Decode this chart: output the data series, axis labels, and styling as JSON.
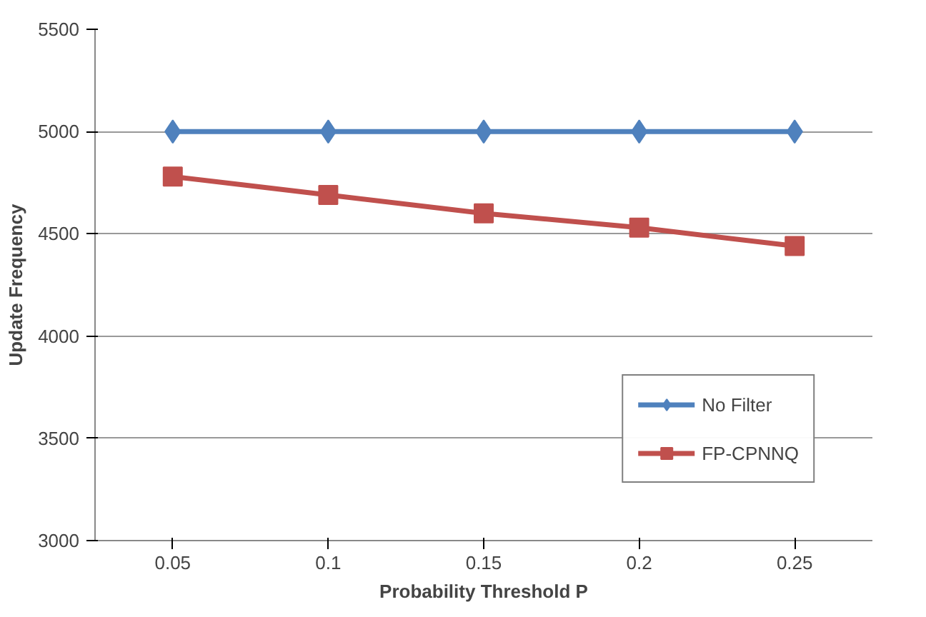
{
  "chart_data": {
    "type": "line",
    "xlabel": "Probability Threshold P",
    "ylabel": "Update Frequency",
    "categories": [
      "0.05",
      "0.1",
      "0.15",
      "0.2",
      "0.25"
    ],
    "series": [
      {
        "name": "No Filter",
        "color": "#4f81bd",
        "values": [
          5000,
          5000,
          5000,
          5000,
          5000
        ],
        "marker": "diamond"
      },
      {
        "name": "FP-CPNNQ",
        "color": "#c0504d",
        "values": [
          4780,
          4690,
          4600,
          4530,
          4440
        ],
        "marker": "square"
      }
    ],
    "ylim": [
      3000,
      5500
    ],
    "yticks": [
      3000,
      3500,
      4000,
      4500,
      5000,
      5500
    ],
    "grid": "y",
    "legend": "bottom right",
    "line_style": "solid"
  }
}
